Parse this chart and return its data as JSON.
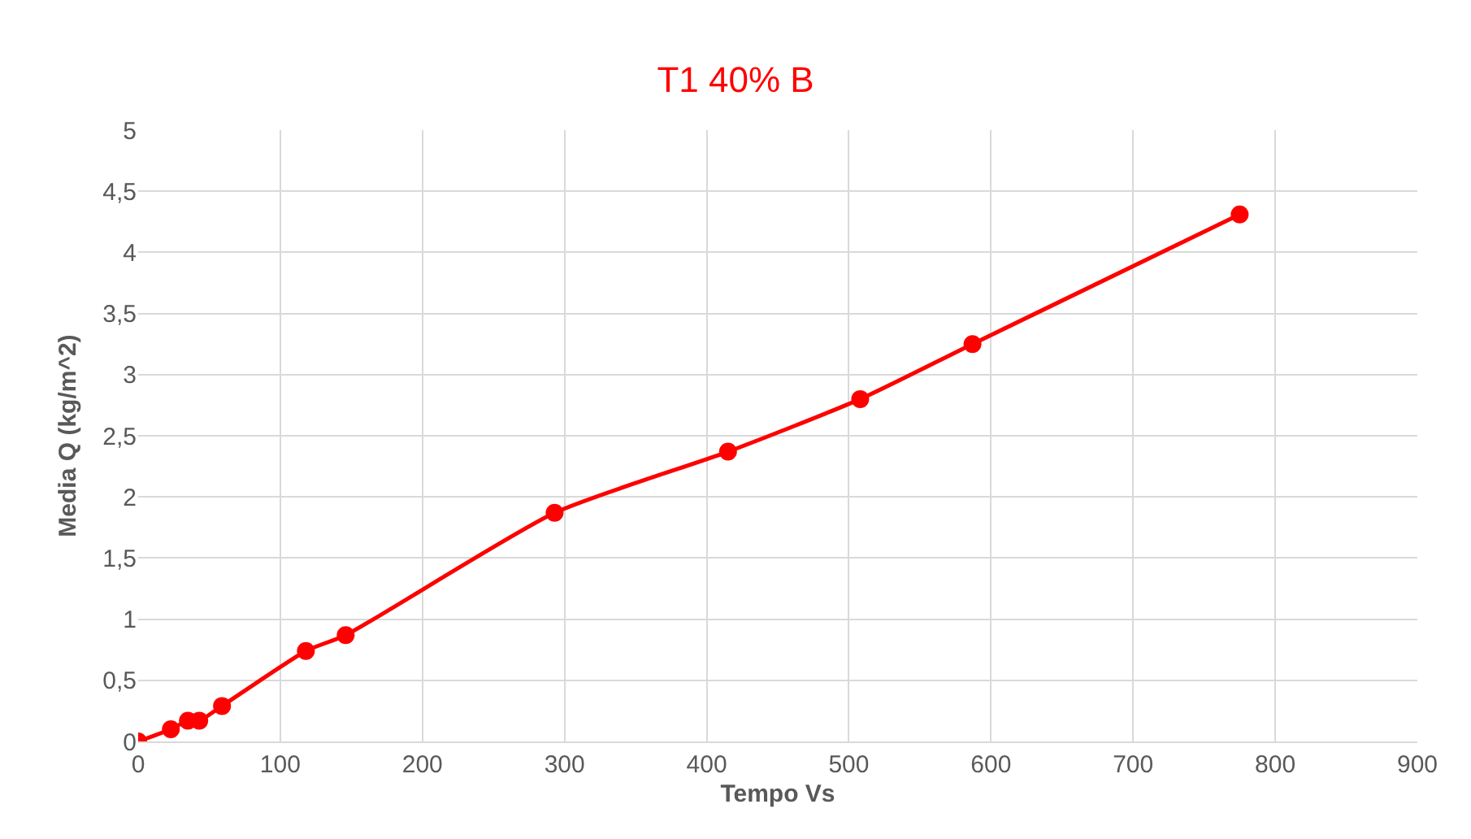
{
  "chart_data": {
    "type": "line",
    "title": "T1 40% B",
    "xlabel": "Tempo Vs",
    "ylabel": "Media Q (kg/m^2)",
    "x": [
      0,
      23,
      35,
      43,
      59,
      118,
      146,
      293,
      415,
      508,
      587,
      775
    ],
    "series": [
      {
        "color": "#ff0000",
        "values": [
          0,
          0.1,
          0.17,
          0.17,
          0.29,
          0.74,
          0.87,
          1.87,
          2.37,
          2.8,
          3.25,
          4.31
        ]
      }
    ],
    "xlim": [
      0,
      900
    ],
    "xticks": [
      0,
      100,
      200,
      300,
      400,
      500,
      600,
      700,
      800,
      900
    ],
    "ylim": [
      0,
      5
    ],
    "yticks": [
      0,
      {
        "value": 0.5,
        "label": "0,5"
      },
      1,
      {
        "value": 1.5,
        "label": "1,5"
      },
      2,
      {
        "value": 2.5,
        "label": "2,5"
      },
      3,
      {
        "value": 3.5,
        "label": "3,5"
      },
      4,
      {
        "value": 4.5,
        "label": "4,5"
      },
      5
    ],
    "grid": true,
    "legend": false,
    "marker": "circle",
    "line_style": "solid"
  }
}
